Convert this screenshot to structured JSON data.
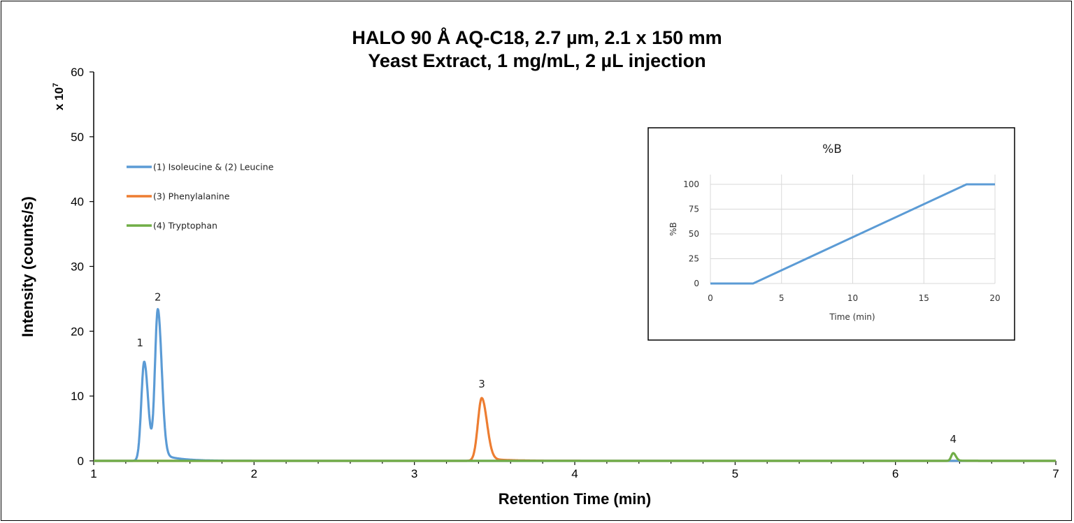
{
  "chart_data": [
    {
      "type": "line",
      "title": [
        "HALO 90 Å AQ-C18, 2.7 µm, 2.1 x 150 mm",
        "Yeast Extract, 1 mg/mL, 2 µL injection"
      ],
      "xlabel": "Retention Time (min)",
      "ylabel": "Intensity (counts/s)",
      "y_multiplier_label": "x 10",
      "y_multiplier_exponent": "7",
      "xlim": [
        1,
        7
      ],
      "ylim": [
        0,
        60
      ],
      "xticks": [
        "1",
        "2",
        "3",
        "4",
        "5",
        "6",
        "7"
      ],
      "yticks": [
        "0",
        "10",
        "20",
        "30",
        "40",
        "50",
        "60"
      ],
      "grid": false,
      "legend_placement": "upper-left",
      "series": [
        {
          "name": "(1) Isoleucine & (2) Leucine",
          "color": "#5b9bd5",
          "peaks": [
            {
              "label": "1",
              "rt": 1.315,
              "height": 15.3
            },
            {
              "label": "2",
              "rt": 1.4,
              "height": 23.1
            }
          ]
        },
        {
          "name": "(3) Phenylalanine",
          "color": "#ed7d31",
          "peaks": [
            {
              "label": "3",
              "rt": 3.42,
              "height": 9.7
            }
          ]
        },
        {
          "name": "(4) Tryptophan",
          "color": "#70ad47",
          "peaks": [
            {
              "label": "4",
              "rt": 6.36,
              "height": 1.2
            }
          ]
        }
      ]
    },
    {
      "type": "line",
      "title": "%B",
      "xlabel": "Time (min)",
      "ylabel": "%B",
      "xlim": [
        0,
        20
      ],
      "ylim": [
        0,
        100
      ],
      "xticks": [
        "0",
        "5",
        "10",
        "15",
        "20"
      ],
      "yticks": [
        "0",
        "25",
        "50",
        "75",
        "100"
      ],
      "grid": true,
      "color": "#5b9bd5",
      "x": [
        0,
        3,
        18,
        20
      ],
      "y": [
        0,
        0,
        100,
        100
      ]
    }
  ]
}
